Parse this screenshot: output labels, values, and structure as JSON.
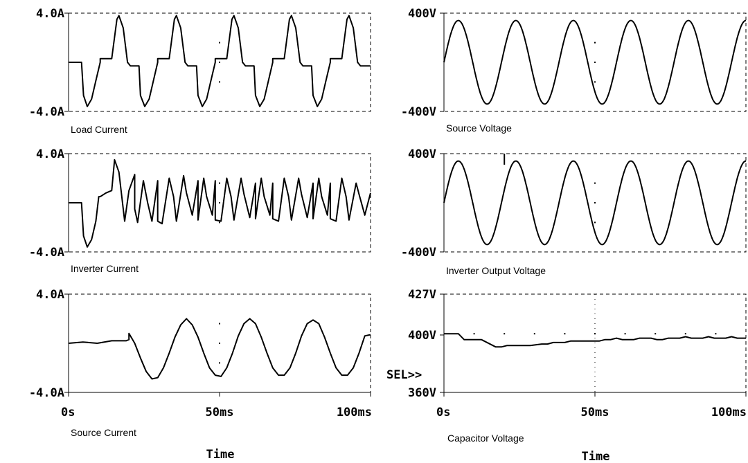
{
  "chart_data": [
    {
      "type": "line",
      "name_label": "Load Current",
      "ylim": [
        -4.0,
        4.0
      ],
      "ytick_labels": [
        "4.0A",
        "-4.0A"
      ],
      "xlim": [
        0,
        105
      ],
      "xtick_labels": [],
      "xlabel": "",
      "series": [
        {
          "x": [
            0,
            4.5,
            4.5,
            5.2,
            6.5,
            8,
            9.5,
            11,
            11,
            13,
            15,
            15,
            16.8,
            17.5,
            19,
            20.5,
            21.5,
            24.5,
            24.5,
            25,
            26.5,
            28,
            29.5,
            31,
            31,
            33,
            35,
            35,
            36.8,
            37.5,
            39,
            40.5,
            41.5,
            44.5,
            44.5,
            45,
            46.5,
            48,
            49.5,
            51,
            51,
            53,
            55,
            55,
            56.8,
            57.5,
            59,
            60.5,
            61.5,
            64.5,
            64.5,
            65,
            66.5,
            68,
            69.5,
            71,
            71,
            73,
            75,
            75,
            76.8,
            77.5,
            79,
            80.5,
            81.5,
            84.5,
            84.5,
            85,
            86.5,
            88,
            89.5,
            91,
            91,
            93,
            95,
            95,
            96.8,
            97.5,
            99,
            100.5,
            101.5,
            104.5,
            105
          ],
          "y": [
            0,
            0,
            0,
            -2.7,
            -3.6,
            -3.0,
            -1.5,
            0,
            0.3,
            0.3,
            0.3,
            0.3,
            3.5,
            3.8,
            2.8,
            0,
            -0.3,
            -0.3,
            -0.3,
            -2.7,
            -3.6,
            -3.0,
            -1.5,
            0,
            0.3,
            0.3,
            0.3,
            0.3,
            3.5,
            3.8,
            2.8,
            0,
            -0.3,
            -0.3,
            -0.3,
            -2.7,
            -3.6,
            -3.0,
            -1.5,
            0,
            0.3,
            0.3,
            0.3,
            0.3,
            3.5,
            3.8,
            2.8,
            0,
            -0.3,
            -0.3,
            -0.3,
            -2.7,
            -3.6,
            -3.0,
            -1.5,
            0,
            0.3,
            0.3,
            0.3,
            0.3,
            3.5,
            3.8,
            2.8,
            0,
            -0.3,
            -0.3,
            -0.3,
            -2.7,
            -3.6,
            -3.0,
            -1.5,
            0,
            0.3,
            0.3,
            0.3,
            0.3,
            3.5,
            3.8,
            2.8,
            0,
            -0.3,
            -0.3,
            -0.3
          ]
        }
      ]
    },
    {
      "type": "line",
      "name_label": "Source Voltage",
      "ylim": [
        -400,
        400
      ],
      "ytick_labels": [
        "400V",
        "-400V"
      ],
      "xlim": [
        0,
        105
      ],
      "xtick_labels": [],
      "xlabel": "",
      "sine": {
        "amplitude": 340,
        "period_ms": 20,
        "phase_ms": 0
      }
    },
    {
      "type": "line",
      "name_label": "Inverter Current",
      "ylim": [
        -4.0,
        4.0
      ],
      "ytick_labels": [
        "4.0A",
        "-4.0A"
      ],
      "xlim": [
        0,
        105
      ],
      "xtick_labels": [],
      "xlabel": "",
      "series": [
        {
          "x": [
            0,
            4.5,
            4.5,
            5.2,
            6.5,
            8,
            9.5,
            10.5,
            11,
            13,
            15,
            15,
            16,
            17.5,
            19.5,
            21,
            23,
            23,
            24,
            26,
            27.5,
            29,
            31,
            31,
            32.5,
            35,
            36.5,
            37.5,
            37.5,
            40,
            41,
            43,
            45,
            45,
            47,
            48,
            50,
            51,
            51,
            53,
            55,
            56.5,
            57.5,
            57.5,
            60,
            61,
            63,
            65,
            65,
            67,
            68,
            70,
            71,
            71,
            73,
            75,
            76.5,
            77.5,
            77.5,
            80,
            81,
            83,
            85,
            85,
            87,
            88,
            90,
            91,
            91,
            93,
            95,
            96.5,
            97.5,
            97.5,
            100,
            101,
            103,
            105
          ],
          "y": [
            0,
            0,
            0,
            -2.7,
            -3.6,
            -3.0,
            -1.5,
            0.5,
            0.5,
            0.8,
            1.0,
            1.0,
            3.5,
            2.5,
            -1.5,
            1.0,
            2.3,
            -0.5,
            -1.6,
            1.8,
            0,
            -1.5,
            1.8,
            -1.5,
            -1.7,
            2.0,
            0.5,
            -1.5,
            -1.5,
            2.2,
            0.8,
            -1.0,
            1.8,
            -1.4,
            2.0,
            0.5,
            -1.0,
            1.8,
            -1.4,
            -1.5,
            2.0,
            0.5,
            -1.4,
            -1.4,
            2.0,
            0.7,
            -1.2,
            1.6,
            -1.3,
            2.0,
            0.5,
            -1.0,
            1.6,
            -1.3,
            -1.5,
            2.0,
            0.5,
            -1.4,
            -1.4,
            2.0,
            0.7,
            -1.2,
            1.6,
            -1.3,
            2.0,
            0.5,
            -1.0,
            1.6,
            -1.3,
            -1.5,
            2.0,
            0.5,
            -1.4,
            -1.4,
            1.6,
            0.7,
            -1.0,
            0.8
          ]
        }
      ]
    },
    {
      "type": "line",
      "name_label": "Inverter Output Voltage",
      "ylim": [
        -400,
        400
      ],
      "ytick_labels": [
        "400V",
        "-400V"
      ],
      "xlim": [
        0,
        105
      ],
      "xtick_labels": [],
      "xlabel": "",
      "sine": {
        "amplitude": 340,
        "period_ms": 20,
        "phase_ms": 0
      },
      "spike": {
        "x": 21,
        "y_from": 310,
        "y_to": 400
      }
    },
    {
      "type": "line",
      "name_label": "Source Current",
      "ylim": [
        -4.0,
        4.0
      ],
      "ytick_labels": [
        "4.0A",
        "-4.0A"
      ],
      "xlim": [
        0,
        105
      ],
      "xtick_labels": [
        "0s",
        "50ms",
        "100ms"
      ],
      "xlabel": "Time",
      "series": [
        {
          "x": [
            0,
            5,
            10,
            15,
            20,
            21,
            21,
            23,
            25,
            27,
            29,
            31,
            33,
            35,
            37,
            39,
            41,
            43,
            45,
            47,
            49,
            51,
            53,
            55,
            57,
            59,
            61,
            63,
            65,
            67,
            69,
            71,
            73,
            75,
            77,
            79,
            81,
            83,
            85,
            87,
            89,
            91,
            93,
            95,
            97,
            99,
            101,
            103,
            105
          ],
          "y": [
            0,
            0.1,
            0,
            0.2,
            0.2,
            0.3,
            0.8,
            0,
            -1.2,
            -2.3,
            -2.9,
            -2.8,
            -2.0,
            -0.8,
            0.5,
            1.5,
            2.0,
            1.5,
            0.5,
            -0.8,
            -2.0,
            -2.6,
            -2.7,
            -2.0,
            -0.8,
            0.6,
            1.6,
            2.0,
            1.6,
            0.5,
            -0.8,
            -2.0,
            -2.6,
            -2.6,
            -2.0,
            -0.8,
            0.6,
            1.6,
            1.9,
            1.6,
            0.5,
            -0.8,
            -2.0,
            -2.6,
            -2.6,
            -2.0,
            -0.8,
            0.6,
            0.7
          ]
        }
      ]
    },
    {
      "type": "line",
      "name_label": "Capacitor Voltage",
      "ylim": [
        360,
        427
      ],
      "ytick_labels": [
        "427V",
        "400V",
        "360V"
      ],
      "xlim": [
        0,
        105
      ],
      "xtick_labels": [
        "0s",
        "50ms",
        "100ms"
      ],
      "xlabel": "Time",
      "annotation": "SEL>>",
      "series": [
        {
          "x": [
            0,
            5,
            7,
            9,
            13,
            17,
            18,
            20,
            22,
            24,
            26,
            30,
            34,
            36,
            38,
            40,
            42,
            44,
            46,
            48,
            50,
            52,
            54,
            56,
            58,
            60,
            62,
            64,
            66,
            68,
            70,
            72,
            74,
            76,
            78,
            80,
            82,
            84,
            86,
            88,
            90,
            92,
            94,
            96,
            98,
            100,
            102,
            104,
            105
          ],
          "y": [
            400,
            400,
            396,
            396,
            396,
            392,
            391,
            391,
            392,
            392,
            392,
            392,
            393,
            393,
            394,
            394,
            394,
            395,
            395,
            395,
            395,
            395,
            395,
            396,
            396,
            397,
            396,
            396,
            396,
            397,
            397,
            397,
            396,
            396,
            397,
            397,
            397,
            398,
            397,
            397,
            397,
            398,
            397,
            397,
            397,
            398,
            397,
            397,
            397
          ]
        }
      ]
    }
  ]
}
